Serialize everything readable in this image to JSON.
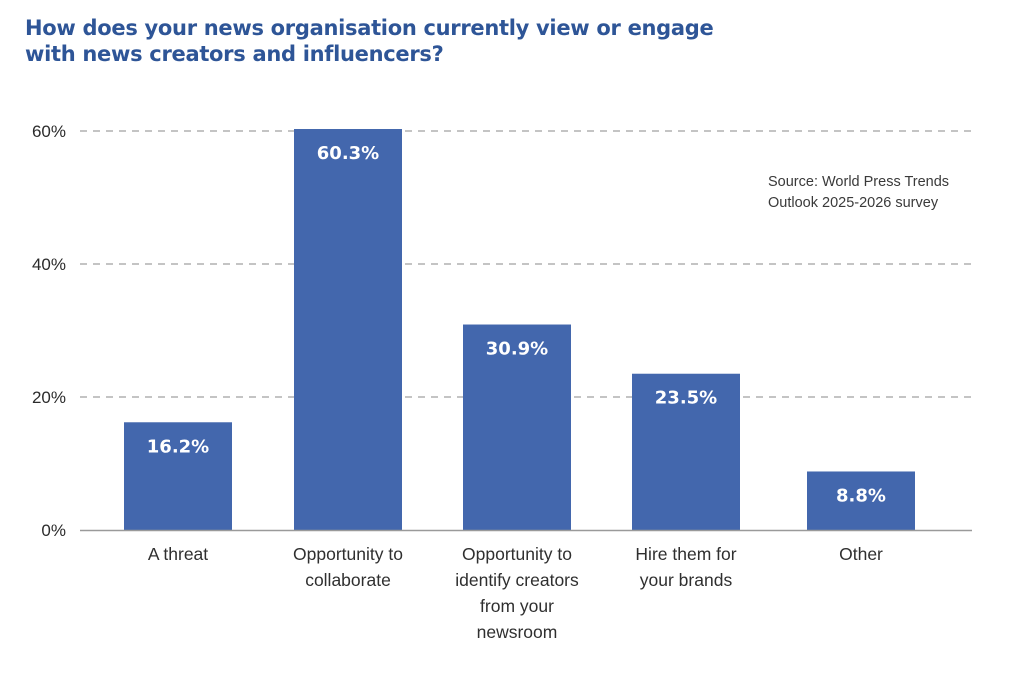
{
  "title": {
    "lines": [
      "How does your news organisation currently view or engage",
      "with news creators and influencers?"
    ]
  },
  "source": {
    "lines": [
      "Source: World Press Trends",
      "Outlook 2025-2026 survey"
    ]
  },
  "colors": {
    "bar": "#4367ad",
    "title": "#2e5597",
    "gridline": "#8a8a8a",
    "axis": "#9a9a9a",
    "bar_label": "#ffffff"
  },
  "chart_data": {
    "type": "bar",
    "title": "How does your news organisation currently view or engage with news creators and influencers?",
    "xlabel": "",
    "ylabel": "",
    "categories": [
      "A threat",
      "Opportunity to collaborate",
      "Opportunity to identify creators from your newsroom",
      "Hire them for your brands",
      "Other"
    ],
    "category_label_lines": [
      [
        "A threat"
      ],
      [
        "Opportunity to",
        "collaborate"
      ],
      [
        "Opportunity to",
        "identify creators",
        "from your",
        "newsroom"
      ],
      [
        "Hire them for",
        "your brands"
      ],
      [
        "Other"
      ]
    ],
    "values": [
      16.2,
      60.3,
      30.9,
      23.5,
      8.8
    ],
    "value_labels": [
      "16.2%",
      "60.3%",
      "30.9%",
      "23.5%",
      "8.8%"
    ],
    "unit": "%",
    "ylim": [
      0,
      60
    ],
    "yticks": [
      0,
      20,
      40,
      60
    ],
    "ytick_labels": [
      "0%",
      "20%",
      "40%",
      "60%"
    ],
    "grid": true,
    "grid_style": "dashed",
    "legend": "none",
    "annotation": "Source: World Press Trends Outlook 2025-2026 survey"
  }
}
